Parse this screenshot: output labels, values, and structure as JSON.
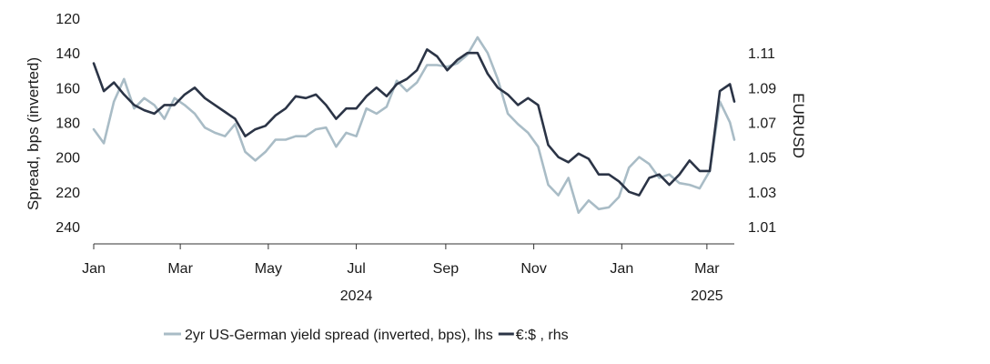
{
  "chart_data": {
    "type": "line",
    "left_axis": {
      "label": "Spread, bps (inverted)",
      "ticks": [
        120,
        140,
        160,
        180,
        200,
        220,
        240
      ],
      "range": [
        120,
        250
      ],
      "inverted": true
    },
    "right_axis": {
      "label": "EURUSD",
      "ticks": [
        "1.11",
        "1.09",
        "1.07",
        "1.05",
        "1.03",
        "1.01"
      ],
      "range": [
        1.0,
        1.13
      ]
    },
    "x_axis": {
      "ticks": [
        "Jan",
        "Mar",
        "May",
        "Jul",
        "Sep",
        "Nov",
        "Jan",
        "Mar"
      ],
      "tick_dates": [
        "2024-01-01",
        "2024-03-01",
        "2024-05-01",
        "2024-07-01",
        "2024-09-01",
        "2024-11-01",
        "2025-01-01",
        "2025-03-01"
      ],
      "years": [
        {
          "label": "2024",
          "date": "2024-07-01"
        },
        {
          "label": "2025",
          "date": "2025-03-01"
        }
      ],
      "range": [
        "2024-01-01",
        "2025-03-20"
      ]
    },
    "series": [
      {
        "name": "2yr US-German yield spread (inverted, bps), lhs",
        "axis": "left",
        "color": "#a9bcc6",
        "x": [
          "2024-01-01",
          "2024-01-08",
          "2024-01-15",
          "2024-01-22",
          "2024-01-29",
          "2024-02-05",
          "2024-02-12",
          "2024-02-19",
          "2024-02-26",
          "2024-03-04",
          "2024-03-11",
          "2024-03-18",
          "2024-03-25",
          "2024-04-01",
          "2024-04-08",
          "2024-04-15",
          "2024-04-22",
          "2024-04-29",
          "2024-05-06",
          "2024-05-13",
          "2024-05-20",
          "2024-05-27",
          "2024-06-03",
          "2024-06-10",
          "2024-06-17",
          "2024-06-24",
          "2024-07-01",
          "2024-07-08",
          "2024-07-15",
          "2024-07-22",
          "2024-07-29",
          "2024-08-05",
          "2024-08-12",
          "2024-08-19",
          "2024-08-26",
          "2024-09-02",
          "2024-09-09",
          "2024-09-16",
          "2024-09-23",
          "2024-09-30",
          "2024-10-07",
          "2024-10-14",
          "2024-10-21",
          "2024-10-28",
          "2024-11-04",
          "2024-11-11",
          "2024-11-18",
          "2024-11-25",
          "2024-12-02",
          "2024-12-09",
          "2024-12-16",
          "2024-12-23",
          "2024-12-30",
          "2025-01-06",
          "2025-01-13",
          "2025-01-20",
          "2025-01-27",
          "2025-02-03",
          "2025-02-10",
          "2025-02-17",
          "2025-02-24",
          "2025-03-03",
          "2025-03-10",
          "2025-03-17",
          "2025-03-20"
        ],
        "values": [
          184,
          192,
          168,
          155,
          172,
          166,
          170,
          178,
          166,
          170,
          175,
          183,
          186,
          188,
          181,
          197,
          202,
          197,
          190,
          190,
          188,
          188,
          184,
          183,
          194,
          186,
          188,
          172,
          175,
          171,
          156,
          162,
          157,
          147,
          147,
          148,
          146,
          141,
          131,
          140,
          155,
          175,
          181,
          186,
          194,
          216,
          222,
          212,
          232,
          225,
          230,
          229,
          223,
          206,
          200,
          204,
          212,
          210,
          215,
          216,
          218,
          208,
          168,
          180,
          190
        ]
      },
      {
        "name": "€:$ , rhs",
        "axis": "right",
        "color": "#2b3446",
        "x": [
          "2024-01-01",
          "2024-01-08",
          "2024-01-15",
          "2024-01-22",
          "2024-01-29",
          "2024-02-05",
          "2024-02-12",
          "2024-02-19",
          "2024-02-26",
          "2024-03-04",
          "2024-03-11",
          "2024-03-18",
          "2024-03-25",
          "2024-04-01",
          "2024-04-08",
          "2024-04-15",
          "2024-04-22",
          "2024-04-29",
          "2024-05-06",
          "2024-05-13",
          "2024-05-20",
          "2024-05-27",
          "2024-06-03",
          "2024-06-10",
          "2024-06-17",
          "2024-06-24",
          "2024-07-01",
          "2024-07-08",
          "2024-07-15",
          "2024-07-22",
          "2024-07-29",
          "2024-08-05",
          "2024-08-12",
          "2024-08-19",
          "2024-08-26",
          "2024-09-02",
          "2024-09-09",
          "2024-09-16",
          "2024-09-23",
          "2024-09-30",
          "2024-10-07",
          "2024-10-14",
          "2024-10-21",
          "2024-10-28",
          "2024-11-04",
          "2024-11-11",
          "2024-11-18",
          "2024-11-25",
          "2024-12-02",
          "2024-12-09",
          "2024-12-16",
          "2024-12-23",
          "2024-12-30",
          "2025-01-06",
          "2025-01-13",
          "2025-01-20",
          "2025-01-27",
          "2025-02-03",
          "2025-02-10",
          "2025-02-17",
          "2025-02-24",
          "2025-03-03",
          "2025-03-10",
          "2025-03-17",
          "2025-03-20"
        ],
        "values": [
          1.104,
          1.088,
          1.093,
          1.086,
          1.08,
          1.077,
          1.075,
          1.08,
          1.08,
          1.086,
          1.09,
          1.084,
          1.08,
          1.076,
          1.072,
          1.062,
          1.066,
          1.068,
          1.074,
          1.078,
          1.085,
          1.084,
          1.086,
          1.08,
          1.072,
          1.078,
          1.078,
          1.085,
          1.09,
          1.085,
          1.092,
          1.095,
          1.1,
          1.112,
          1.108,
          1.1,
          1.106,
          1.11,
          1.11,
          1.098,
          1.09,
          1.086,
          1.08,
          1.084,
          1.08,
          1.057,
          1.05,
          1.047,
          1.052,
          1.049,
          1.04,
          1.04,
          1.036,
          1.03,
          1.028,
          1.038,
          1.04,
          1.034,
          1.04,
          1.048,
          1.042,
          1.042,
          1.088,
          1.092,
          1.082
        ]
      }
    ],
    "legend": {
      "position": "bottom",
      "items": [
        {
          "label": "2yr US-German yield spread (inverted, bps), lhs",
          "color": "#a9bcc6"
        },
        {
          "label": "€:$ , rhs",
          "color": "#2b3446"
        }
      ]
    }
  }
}
